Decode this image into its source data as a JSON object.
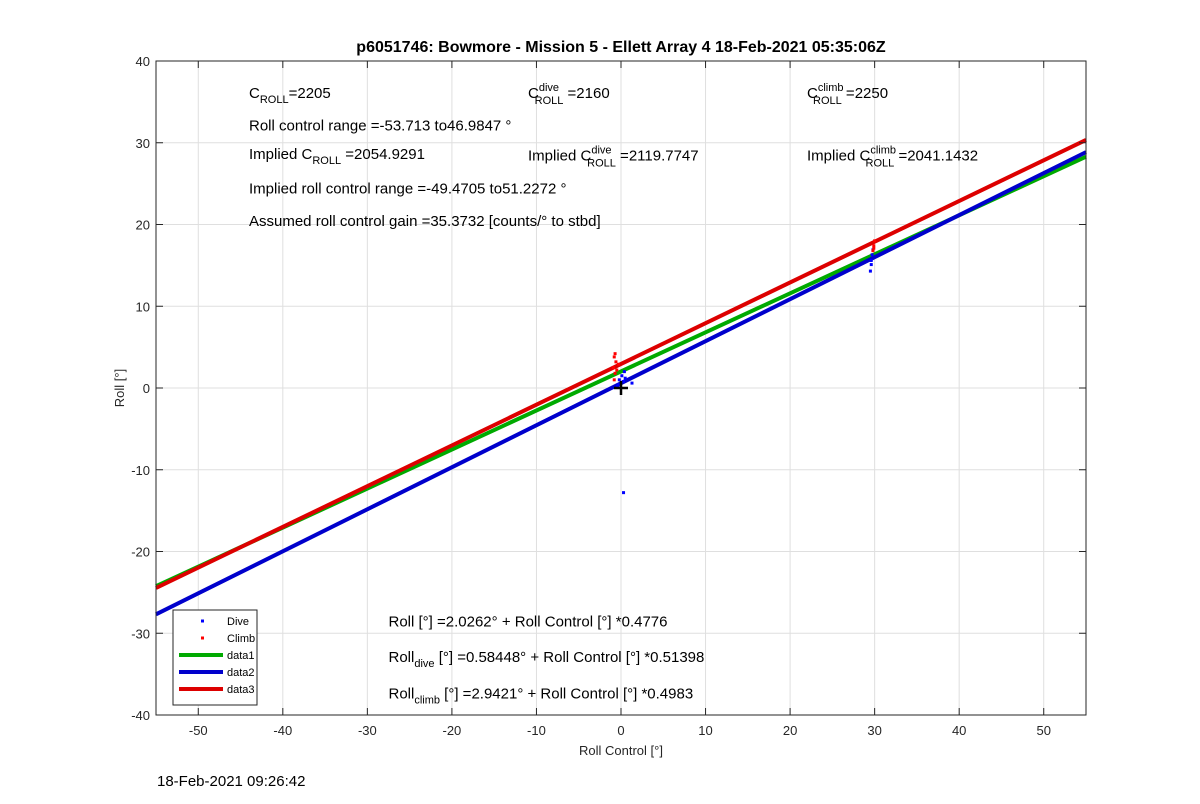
{
  "chart_data": {
    "type": "scatter",
    "title": "p6051746: Bowmore - Mission 5 - Ellett Array 4 18-Feb-2021 05:35:06Z",
    "xlabel": "Roll Control [°]",
    "ylabel": "Roll [°]",
    "xlim": [
      -55,
      55
    ],
    "ylim": [
      -40,
      40
    ],
    "xticks": [
      -50,
      -40,
      -30,
      -20,
      -10,
      0,
      10,
      20,
      30,
      40,
      50
    ],
    "yticks": [
      -40,
      -30,
      -20,
      -10,
      0,
      10,
      20,
      30,
      40
    ],
    "grid": true,
    "legend_position": "bottom-left",
    "series": [
      {
        "name": "Dive",
        "kind": "points",
        "color": "#0000ff",
        "points": [
          [
            -0.3,
            0.4
          ],
          [
            -0.2,
            1.0
          ],
          [
            0.1,
            1.5
          ],
          [
            0.3,
            0.8
          ],
          [
            -0.4,
            0.2
          ],
          [
            0.4,
            2.0
          ],
          [
            0.5,
            1.2
          ],
          [
            1.3,
            0.6
          ],
          [
            0.3,
            -12.8
          ],
          [
            29.6,
            15.1
          ],
          [
            29.7,
            16.3
          ],
          [
            29.5,
            14.3
          ],
          [
            29.8,
            16.9
          ],
          [
            29.6,
            15.6
          ]
        ]
      },
      {
        "name": "Climb",
        "kind": "points",
        "color": "#ff0000",
        "points": [
          [
            -0.8,
            1.0
          ],
          [
            -0.7,
            1.8
          ],
          [
            -0.9,
            2.5
          ],
          [
            -0.6,
            3.2
          ],
          [
            -0.8,
            3.8
          ],
          [
            -0.7,
            4.2
          ],
          [
            -0.5,
            2.2
          ],
          [
            -0.3,
            2.9
          ],
          [
            29.9,
            17.4
          ],
          [
            30.0,
            18.0
          ],
          [
            29.8,
            16.8
          ],
          [
            29.9,
            17.1
          ]
        ]
      },
      {
        "name": "data1",
        "kind": "line",
        "color": "#00aa00",
        "intercept": 2.0262,
        "slope": 0.4776
      },
      {
        "name": "data2",
        "kind": "line",
        "color": "#0000cc",
        "intercept": 0.58448,
        "slope": 0.51398
      },
      {
        "name": "data3",
        "kind": "line",
        "color": "#dd0000",
        "intercept": 2.9421,
        "slope": 0.4983
      }
    ],
    "marker": {
      "x": 0,
      "y": 0
    },
    "annotations": [
      {
        "pos": [
          -44,
          35.5
        ],
        "base": "C",
        "sub": "ROLL",
        "sup": "",
        "text": "=2205"
      },
      {
        "pos": [
          -11,
          35.5
        ],
        "base": "C",
        "sub": "ROLL",
        "sup": "dive",
        "text": " =2160"
      },
      {
        "pos": [
          22,
          35.5
        ],
        "base": "C",
        "sub": "ROLL",
        "sup": "climb",
        "text": " =2250"
      },
      {
        "pos": [
          -44,
          31.5
        ],
        "base": "",
        "sub": "",
        "sup": "",
        "text": "Roll control range =-53.713 to46.9847 °"
      },
      {
        "pos": [
          -44,
          28.0
        ],
        "base": "Implied C",
        "sub": "ROLL",
        "sup": "",
        "text": " =2054.9291"
      },
      {
        "pos": [
          -11,
          27.8
        ],
        "base": "Implied C",
        "sub": "ROLL",
        "sup": "dive",
        "text": " =2119.7747"
      },
      {
        "pos": [
          22,
          27.8
        ],
        "base": "Implied C",
        "sub": "ROLL",
        "sup": "climb",
        "text": " =2041.1432"
      },
      {
        "pos": [
          -44,
          23.8
        ],
        "base": "",
        "sub": "",
        "sup": "",
        "text": "Implied roll control range =-49.4705 to51.2272 °"
      },
      {
        "pos": [
          -44,
          19.8
        ],
        "base": "",
        "sub": "",
        "sup": "",
        "text": "Assumed roll control gain =35.3732 [counts/° to stbd]"
      },
      {
        "pos": [
          -27.5,
          -29.2
        ],
        "base": "",
        "sub": "",
        "sup": "",
        "text": "Roll [°] =2.0262° + Roll Control [°] *0.4776"
      },
      {
        "pos": [
          -27.5,
          -33.5
        ],
        "base": "Roll",
        "sub": "dive",
        "sup": "",
        "text": " [°] =0.58448° + Roll Control [°] *0.51398"
      },
      {
        "pos": [
          -27.5,
          -38.0
        ],
        "base": "Roll",
        "sub": "climb",
        "sup": "",
        "text": " [°] =2.9421° + Roll Control [°] *0.4983"
      }
    ]
  },
  "footer": {
    "timestamp": "18-Feb-2021 09:26:42"
  }
}
